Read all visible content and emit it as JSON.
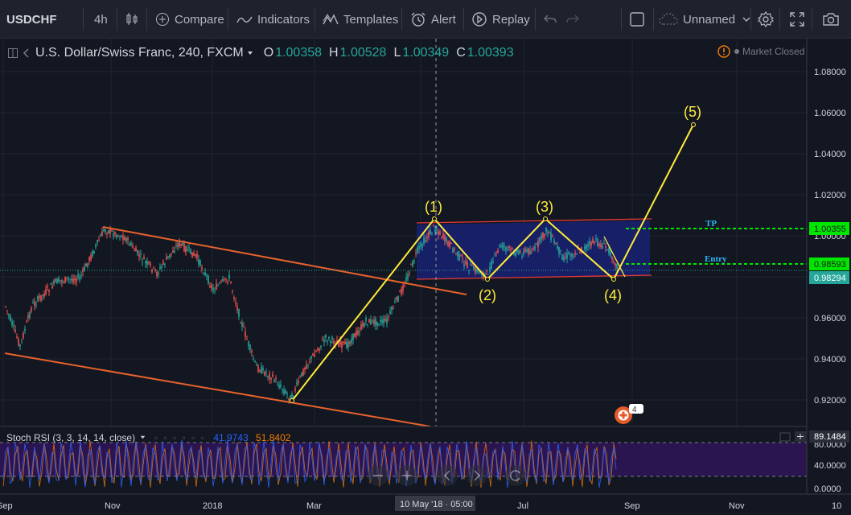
{
  "toolbar": {
    "symbol": "USDCHF",
    "interval": "4h",
    "compare": "Compare",
    "indicators": "Indicators",
    "templates": "Templates",
    "alert": "Alert",
    "replay": "Replay",
    "layout_name": "Unnamed"
  },
  "legend": {
    "title": "U.S. Dollar/Swiss Franc, 240, FXCM",
    "o_label": "O",
    "o_value": "1.00358",
    "h_label": "H",
    "h_value": "1.00528",
    "l_label": "L",
    "l_value": "1.00349",
    "c_label": "C",
    "c_value": "1.00393",
    "market_status": "Market Closed"
  },
  "colors": {
    "background": "#131722",
    "up": "#26a69a",
    "down": "#ef5350",
    "wave": "#ffeb3b",
    "channel": "#e8622c",
    "range_fill": "#1a237e",
    "target_line": "#00e600"
  },
  "price_axis": {
    "labels": [
      "1.08000",
      "1.06000",
      "1.04000",
      "1.02000",
      "1.00000",
      "0.98000",
      "0.96000",
      "0.94000",
      "0.92000"
    ],
    "tags": [
      {
        "text": "1.00355",
        "kind": "tp"
      },
      {
        "text": "0.98593",
        "kind": "entry"
      },
      {
        "text": "0.98294",
        "kind": "last"
      }
    ]
  },
  "time_axis": {
    "labels": [
      "Sep",
      "Nov",
      "2018",
      "Mar",
      "Jul",
      "Sep",
      "Nov",
      "10"
    ],
    "crosshair_label": "10 May '18 · 05:00"
  },
  "annotations": {
    "waves": [
      "(1)",
      "(2)",
      "(3)",
      "(4)",
      "(5)"
    ],
    "tp_label": "TP",
    "entry_label": "Entry"
  },
  "oscillator": {
    "title": "Stoch RSI (3, 3, 14, 14, close)",
    "k_value": "41.9743",
    "d_value": "51.8402",
    "axis_labels": [
      "80.0000",
      "40.0000",
      "0.0000"
    ],
    "current_tag": "89.1484"
  },
  "badge": "4"
}
